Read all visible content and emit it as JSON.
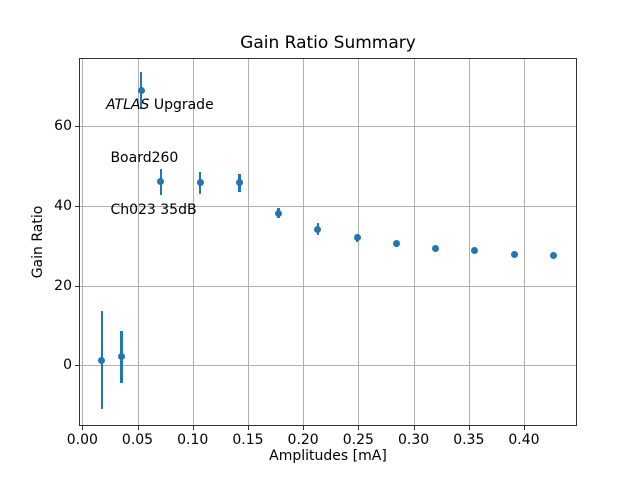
{
  "chart_data": {
    "type": "scatter",
    "title": "Gain Ratio Summary",
    "xlabel": "Amplitudes [mA]",
    "ylabel": "Gain Ratio",
    "annotation": {
      "line1_italic": "ATLAS",
      "line1_rest": " Upgrade",
      "line2": " Board260",
      "line3": " Ch023 35dB"
    },
    "xlim": [
      -0.003,
      0.448
    ],
    "ylim": [
      -15.2,
      77.0
    ],
    "grid": true,
    "legend": false,
    "xticks": {
      "values": [
        0.0,
        0.05,
        0.1,
        0.15,
        0.2,
        0.25,
        0.3,
        0.35,
        0.4
      ],
      "labels": [
        "0.00",
        "0.05",
        "0.10",
        "0.15",
        "0.20",
        "0.25",
        "0.30",
        "0.35",
        "0.40"
      ]
    },
    "yticks": {
      "values": [
        0,
        20,
        40,
        60
      ],
      "labels": [
        "0",
        "20",
        "40",
        "60"
      ]
    },
    "series": [
      {
        "name": "gain_ratio",
        "marker": "circle",
        "color": "#1f77b4",
        "x": [
          0.0178,
          0.0356,
          0.0533,
          0.0711,
          0.1067,
          0.1422,
          0.1778,
          0.2133,
          0.2489,
          0.2844,
          0.32,
          0.3556,
          0.3911,
          0.4267
        ],
        "y": [
          1.3,
          2.1,
          68.8,
          46.0,
          45.7,
          45.7,
          38.1,
          34.1,
          32.0,
          30.4,
          29.3,
          28.7,
          27.8,
          27.4
        ],
        "yerr": [
          12.3,
          6.5,
          4.6,
          3.3,
          2.7,
          2.2,
          1.3,
          1.5,
          1.0,
          0.7,
          0.5,
          0.45,
          0.4,
          0.35
        ]
      }
    ],
    "colors": {
      "grid": "#b0b0b0",
      "spine": "#333333",
      "text": "#000000",
      "background": "#ffffff",
      "series0": "#1f77b4"
    }
  }
}
